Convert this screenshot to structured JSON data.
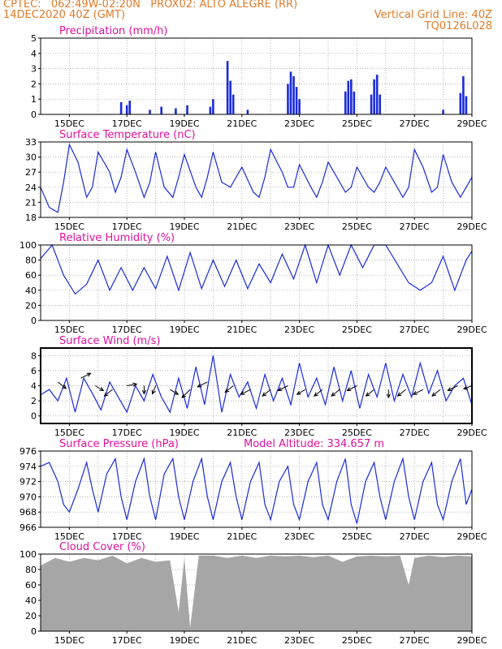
{
  "header": {
    "line1": "CPTEC:   062:49W-02:20N   PROX02: ALTO ALEGRE (RR)",
    "line2_left": "14DEC2020 40Z (GMT)",
    "line2_right": "Vertical Grid Line: 40Z",
    "line3_right": "TQ0126L028"
  },
  "colors": {
    "header": "#e07b2a",
    "title": "#e0119d",
    "series": "#1a2bd8",
    "cloud": "#a6a6a6",
    "wind_arrow": "#000000"
  },
  "x_ticks": [
    "15DEC",
    "17DEC",
    "19DEC",
    "21DEC",
    "23DEC",
    "25DEC",
    "27DEC",
    "29DEC"
  ],
  "chart_data": [
    {
      "id": "precip",
      "type": "bar",
      "title": "Precipitation (mm/h)",
      "ylim": [
        0,
        5
      ],
      "yticks": [
        0,
        1,
        2,
        3,
        4,
        5
      ],
      "x": [
        16.8,
        17.0,
        17.1,
        17.8,
        18.2,
        18.7,
        19.1,
        19.9,
        20.0,
        20.5,
        20.6,
        20.7,
        21.2,
        22.6,
        22.7,
        22.8,
        22.9,
        23.0,
        24.6,
        24.7,
        24.8,
        24.9,
        25.5,
        25.6,
        25.7,
        25.8,
        28.0,
        28.6,
        28.7,
        28.8
      ],
      "values": [
        0.8,
        0.6,
        0.9,
        0.3,
        0.5,
        0.4,
        0.6,
        0.5,
        1.0,
        3.5,
        2.2,
        1.3,
        0.3,
        2.0,
        2.8,
        2.5,
        1.8,
        1.0,
        1.5,
        2.2,
        2.3,
        1.5,
        1.3,
        2.3,
        2.6,
        1.3,
        0.3,
        1.4,
        2.5,
        1.2
      ]
    },
    {
      "id": "temp",
      "type": "line",
      "title": "Surface Temperature (nC)",
      "ylim": [
        18,
        33
      ],
      "yticks": [
        18,
        21,
        24,
        27,
        30,
        33
      ],
      "x": [
        14.0,
        14.3,
        14.6,
        14.8,
        15.0,
        15.3,
        15.6,
        15.8,
        16.0,
        16.4,
        16.6,
        16.8,
        17.0,
        17.3,
        17.6,
        17.8,
        18.0,
        18.3,
        18.6,
        18.8,
        19.0,
        19.4,
        19.6,
        19.8,
        20.0,
        20.3,
        20.6,
        20.8,
        21.0,
        21.4,
        21.6,
        21.8,
        22.0,
        22.4,
        22.6,
        22.8,
        23.0,
        23.4,
        23.6,
        23.8,
        24.0,
        24.4,
        24.6,
        24.8,
        25.0,
        25.4,
        25.6,
        25.8,
        26.0,
        26.4,
        26.6,
        26.8,
        27.0,
        27.3,
        27.6,
        27.8,
        28.0,
        28.3,
        28.6,
        28.8,
        29.0
      ],
      "values": [
        24,
        20,
        19,
        25,
        32.5,
        29,
        22,
        24,
        31,
        27,
        23,
        26,
        31.5,
        27,
        22,
        25,
        31,
        24,
        22,
        26,
        30.5,
        24,
        22,
        26,
        31,
        25,
        24,
        26,
        28,
        23,
        22,
        26,
        31.5,
        27,
        24,
        24,
        28.5,
        24,
        22,
        25,
        29,
        25,
        23,
        24,
        28,
        24,
        23,
        25,
        28,
        24,
        22,
        24,
        31.5,
        28,
        23,
        24,
        30.5,
        25,
        22,
        24,
        26
      ]
    },
    {
      "id": "rh",
      "type": "line",
      "title": "Relative Humidity (%)",
      "ylim": [
        0,
        100
      ],
      "yticks": [
        0,
        20,
        40,
        60,
        80,
        100
      ],
      "x": [
        14.0,
        14.4,
        14.8,
        15.2,
        15.6,
        16.0,
        16.4,
        16.8,
        17.2,
        17.6,
        18.0,
        18.4,
        18.8,
        19.2,
        19.6,
        20.0,
        20.4,
        20.8,
        21.2,
        21.6,
        22.0,
        22.4,
        22.8,
        23.2,
        23.6,
        24.0,
        24.4,
        24.8,
        25.2,
        25.6,
        26.0,
        26.4,
        26.8,
        27.2,
        27.6,
        28.0,
        28.4,
        28.8,
        29.0
      ],
      "values": [
        82,
        100,
        60,
        35,
        48,
        80,
        40,
        70,
        40,
        70,
        42,
        85,
        40,
        90,
        42,
        80,
        45,
        80,
        42,
        75,
        50,
        88,
        55,
        100,
        50,
        100,
        60,
        100,
        70,
        100,
        100,
        75,
        50,
        40,
        50,
        85,
        40,
        80,
        92
      ]
    },
    {
      "id": "wind",
      "type": "line",
      "title": "Surface Wind (m/s)",
      "ylim": [
        -1,
        9
      ],
      "yticks": [
        0,
        2,
        4,
        6,
        8
      ],
      "x": [
        14.0,
        14.3,
        14.6,
        14.9,
        15.2,
        15.5,
        15.8,
        16.1,
        16.4,
        16.7,
        17.0,
        17.3,
        17.6,
        17.9,
        18.2,
        18.5,
        18.8,
        19.1,
        19.4,
        19.7,
        20.0,
        20.3,
        20.6,
        20.9,
        21.2,
        21.5,
        21.8,
        22.1,
        22.4,
        22.7,
        23.0,
        23.3,
        23.6,
        23.9,
        24.2,
        24.5,
        24.8,
        25.1,
        25.4,
        25.7,
        26.0,
        26.3,
        26.6,
        26.9,
        27.2,
        27.5,
        27.8,
        28.1,
        28.4,
        28.7,
        29.0
      ],
      "values": [
        2.8,
        3.5,
        2.0,
        5.0,
        0.5,
        5.0,
        3.0,
        0.8,
        4.5,
        2.5,
        0.5,
        4.0,
        2.0,
        5.5,
        2.5,
        0.5,
        5.0,
        1.0,
        6.5,
        1.5,
        8.0,
        0.5,
        5.5,
        2.5,
        4.5,
        1.0,
        5.5,
        2.0,
        5.0,
        1.5,
        7.0,
        2.5,
        5.0,
        1.5,
        6.5,
        2.0,
        6.0,
        1.0,
        5.5,
        2.5,
        7.0,
        2.0,
        5.5,
        2.5,
        7.0,
        3.0,
        6.0,
        2.0,
        4.0,
        5.0,
        1.5
      ],
      "arrows": [
        {
          "x": 14.6,
          "y": 4.5,
          "dx": 5,
          "dy": 4
        },
        {
          "x": 15.4,
          "y": 5.0,
          "dx": 6,
          "dy": -3
        },
        {
          "x": 15.9,
          "y": 4.0,
          "dx": 5,
          "dy": 3
        },
        {
          "x": 16.5,
          "y": 3.5,
          "dx": -5,
          "dy": 4
        },
        {
          "x": 17.0,
          "y": 4.0,
          "dx": 6,
          "dy": -1
        },
        {
          "x": 17.6,
          "y": 4.0,
          "dx": 0,
          "dy": 5
        },
        {
          "x": 18.0,
          "y": 4.0,
          "dx": -2,
          "dy": 5
        },
        {
          "x": 18.5,
          "y": 3.5,
          "dx": 5,
          "dy": 3
        },
        {
          "x": 19.2,
          "y": 3.5,
          "dx": -5,
          "dy": 5
        },
        {
          "x": 19.8,
          "y": 4.5,
          "dx": -6,
          "dy": 3
        },
        {
          "x": 20.7,
          "y": 4.0,
          "dx": -5,
          "dy": 4
        },
        {
          "x": 21.3,
          "y": 3.5,
          "dx": -6,
          "dy": 3
        },
        {
          "x": 22.0,
          "y": 3.5,
          "dx": -5,
          "dy": 4
        },
        {
          "x": 22.6,
          "y": 4.0,
          "dx": -6,
          "dy": 3
        },
        {
          "x": 23.2,
          "y": 3.5,
          "dx": -5,
          "dy": 3
        },
        {
          "x": 23.8,
          "y": 3.5,
          "dx": -5,
          "dy": 4
        },
        {
          "x": 24.4,
          "y": 3.5,
          "dx": -5,
          "dy": 4
        },
        {
          "x": 25.0,
          "y": 4.0,
          "dx": -6,
          "dy": 3
        },
        {
          "x": 25.6,
          "y": 3.5,
          "dx": -5,
          "dy": 4
        },
        {
          "x": 26.1,
          "y": 3.5,
          "dx": 0,
          "dy": 5
        },
        {
          "x": 26.7,
          "y": 3.5,
          "dx": -5,
          "dy": 4
        },
        {
          "x": 27.3,
          "y": 3.5,
          "dx": -6,
          "dy": 3
        },
        {
          "x": 27.9,
          "y": 3.5,
          "dx": -5,
          "dy": 4
        },
        {
          "x": 28.5,
          "y": 4.0,
          "dx": -6,
          "dy": 3
        },
        {
          "x": 29.0,
          "y": 4.0,
          "dx": -5,
          "dy": 2
        }
      ]
    },
    {
      "id": "pressure",
      "type": "line",
      "title": "Surface Pressure (hPa)",
      "subtitle": "Model Altitude: 334.657 m",
      "ylim": [
        966,
        976
      ],
      "yticks": [
        966,
        968,
        970,
        972,
        974,
        976
      ],
      "x": [
        14.0,
        14.3,
        14.6,
        14.8,
        15.0,
        15.3,
        15.6,
        15.8,
        16.0,
        16.3,
        16.6,
        16.8,
        17.0,
        17.3,
        17.6,
        17.8,
        18.0,
        18.3,
        18.6,
        18.8,
        19.0,
        19.3,
        19.6,
        19.8,
        20.0,
        20.3,
        20.6,
        20.8,
        21.0,
        21.3,
        21.6,
        21.8,
        22.0,
        22.3,
        22.6,
        22.8,
        23.0,
        23.3,
        23.6,
        23.8,
        24.0,
        24.3,
        24.6,
        24.8,
        25.0,
        25.3,
        25.6,
        25.8,
        26.0,
        26.3,
        26.6,
        26.8,
        27.0,
        27.3,
        27.6,
        27.8,
        28.0,
        28.3,
        28.6,
        28.8,
        29.0
      ],
      "values": [
        974,
        974.5,
        972,
        969,
        968,
        971,
        974.5,
        971,
        968,
        973,
        975,
        970,
        967,
        972,
        975,
        970,
        967,
        973,
        975,
        970,
        967,
        972,
        975,
        970,
        967,
        972,
        974.5,
        970,
        967,
        972,
        974.5,
        969,
        967,
        972,
        974,
        969,
        967,
        972,
        974.5,
        969,
        967,
        972,
        975,
        969,
        966.5,
        972,
        974.5,
        970,
        967,
        972,
        975,
        970,
        967,
        972,
        974.5,
        969,
        967,
        972,
        975,
        969,
        971
      ]
    },
    {
      "id": "cloud",
      "type": "area",
      "title": "Cloud Cover (%)",
      "ylim": [
        0,
        100
      ],
      "yticks": [
        0,
        20,
        40,
        60,
        80,
        100
      ],
      "x": [
        14.0,
        14.5,
        15.0,
        15.5,
        16.0,
        16.5,
        17.0,
        17.5,
        18.0,
        18.5,
        18.8,
        19.0,
        19.2,
        19.5,
        20.0,
        20.5,
        21.0,
        21.5,
        22.0,
        22.5,
        23.0,
        23.5,
        24.0,
        24.5,
        25.0,
        25.5,
        26.0,
        26.5,
        26.8,
        27.0,
        27.5,
        28.0,
        28.5,
        29.0
      ],
      "values": [
        85,
        95,
        90,
        95,
        92,
        98,
        88,
        95,
        90,
        92,
        25,
        95,
        5,
        98,
        98,
        95,
        98,
        95,
        98,
        97,
        98,
        96,
        98,
        90,
        97,
        98,
        97,
        98,
        60,
        95,
        98,
        96,
        98,
        97
      ]
    }
  ]
}
